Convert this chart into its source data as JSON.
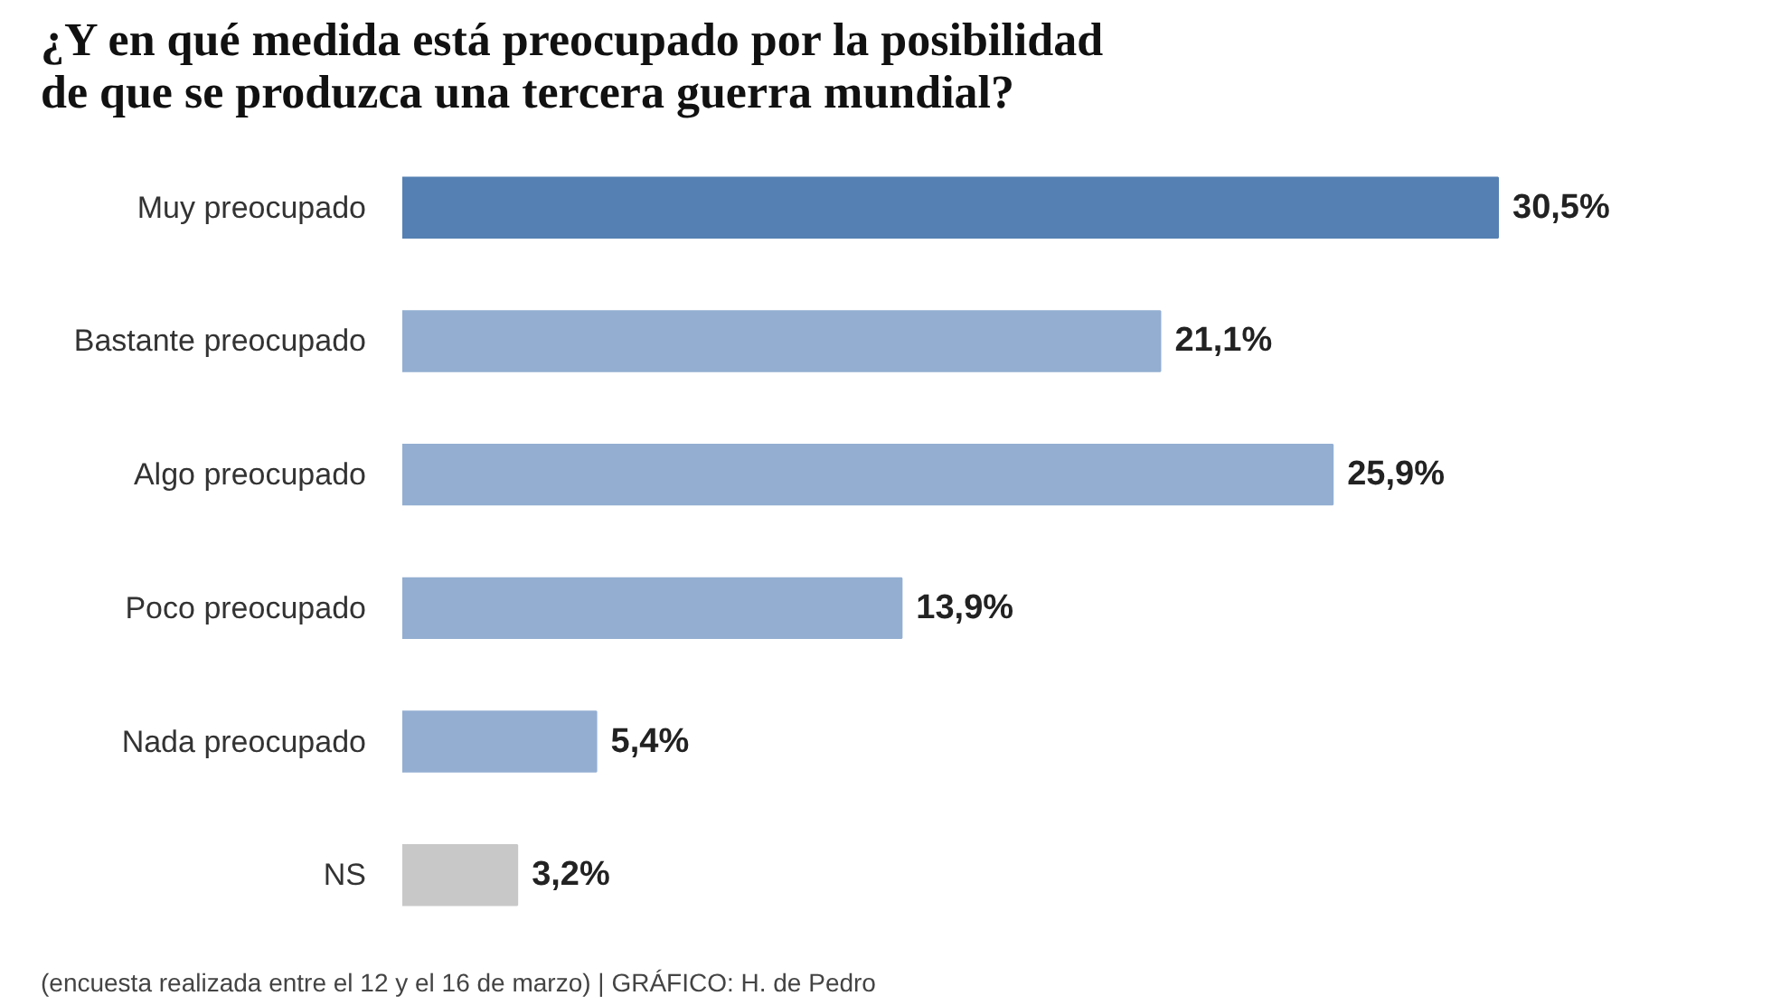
{
  "chart_data": {
    "type": "bar",
    "orientation": "horizontal",
    "title": "¿Y en qué medida está preocupado por la posibilidad\nde que se produzca una tercera guerra mundial?",
    "categories": [
      "Muy preocupado",
      "Bastante preocupado",
      "Algo preocupado",
      "Poco preocupado",
      "Nada preocupado",
      "NS"
    ],
    "values": [
      30.5,
      21.1,
      25.9,
      13.9,
      5.4,
      3.2
    ],
    "colors": [
      "#5580b3",
      "#93aed1",
      "#93aed1",
      "#93aed1",
      "#93aed1",
      "#c8c8c8"
    ],
    "value_labels": [
      "30,5%",
      "21,1%",
      "25,9%",
      "13,9%",
      "5,4%",
      "3,2%"
    ],
    "annotations": [
      "(encuesta realizada entre el 12 y el 16 de marzo)  |  GRÁFICO: H. de Pedro"
    ],
    "grid": false
  }
}
